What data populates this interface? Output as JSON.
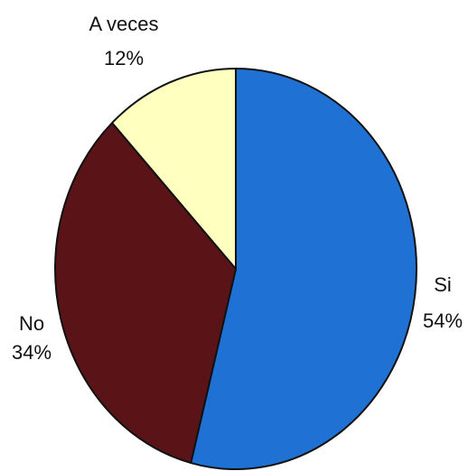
{
  "chart_data": {
    "type": "pie",
    "slices": [
      {
        "label": "Si",
        "value": 54,
        "value_label": "54%",
        "color": "#1f72d4"
      },
      {
        "label": "No",
        "value": 34,
        "value_label": "34%",
        "color": "#5a1418"
      },
      {
        "label": "A veces",
        "value": 12,
        "value_label": "12%",
        "color": "#ffffc0"
      }
    ],
    "start_angle_deg": 0,
    "direction": "clockwise",
    "outline_color": "#111111"
  }
}
